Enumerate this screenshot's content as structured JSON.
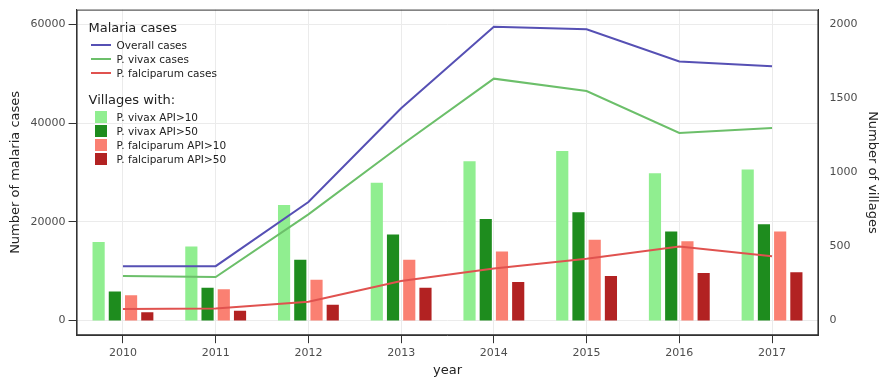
{
  "chart_data": {
    "type": "bar",
    "categories": [
      "2010",
      "2011",
      "2012",
      "2013",
      "2014",
      "2015",
      "2016",
      "2017"
    ],
    "x_label": "year",
    "y_label": "Number of malaria cases",
    "y2_label": "Number of villages",
    "ylim": [
      -3000,
      63000
    ],
    "yticks": [
      0,
      20000,
      40000,
      60000
    ],
    "y2lim": [
      -100,
      2100
    ],
    "y2ticks": [
      0,
      500,
      1000,
      1500,
      2000
    ],
    "grid": true,
    "legend": "upper left",
    "series": [
      {
        "name": "Overall cases",
        "group": "Malaria cases",
        "type": "line",
        "color": "#5650b4",
        "values": [
          11000,
          11000,
          24000,
          43000,
          59500,
          59000,
          52500,
          51500
        ]
      },
      {
        "name": "P. vivax cases",
        "group": "Malaria cases",
        "type": "line",
        "color": "#6cbf6a",
        "values": [
          9000,
          8800,
          21500,
          35500,
          49000,
          46500,
          38000,
          39000
        ]
      },
      {
        "name": "P. falciparum cases",
        "group": "Malaria cases",
        "type": "line",
        "color": "#e0524f",
        "values": [
          2300,
          2400,
          3800,
          8000,
          10500,
          12500,
          15000,
          13000
        ]
      },
      {
        "name": "P. vivax API>10",
        "group": "Villages with:",
        "type": "bar",
        "axis": "y2",
        "color": "#90ee90",
        "values": [
          530,
          500,
          780,
          930,
          1075,
          1145,
          995,
          1020
        ]
      },
      {
        "name": "P. vivax API>50",
        "group": "Villages with:",
        "type": "bar",
        "axis": "y2",
        "color": "#1e8c1e",
        "values": [
          195,
          220,
          410,
          580,
          685,
          730,
          600,
          650
        ]
      },
      {
        "name": "P. falciparum API>10",
        "group": "Villages with:",
        "type": "bar",
        "axis": "y2",
        "color": "#fa8072",
        "values": [
          170,
          210,
          275,
          410,
          465,
          545,
          535,
          600
        ]
      },
      {
        "name": "P. falciparum API>50",
        "group": "Villages with:",
        "type": "bar",
        "axis": "y2",
        "color": "#b22222",
        "values": [
          55,
          65,
          105,
          220,
          260,
          300,
          320,
          325
        ]
      }
    ]
  }
}
